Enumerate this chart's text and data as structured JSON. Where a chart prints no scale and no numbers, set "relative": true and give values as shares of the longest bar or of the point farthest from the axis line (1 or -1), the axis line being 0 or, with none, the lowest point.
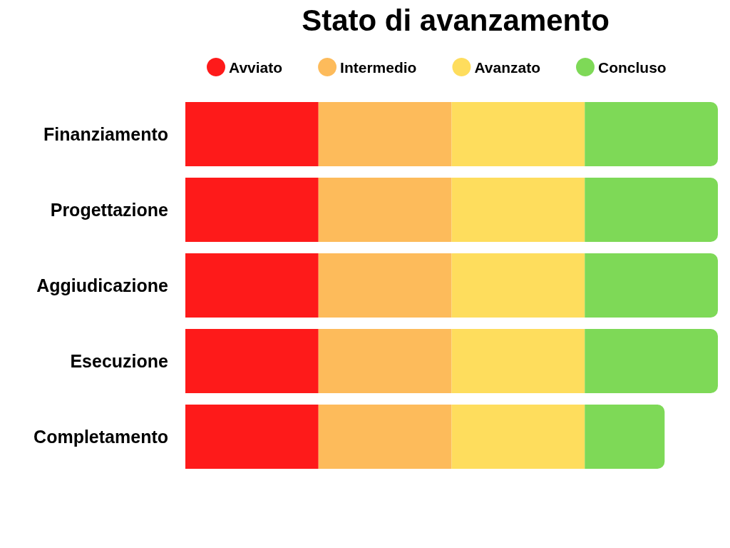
{
  "chart_data": {
    "type": "bar",
    "title": "Stato di avanzamento",
    "orientation": "horizontal",
    "stacked": true,
    "relative": true,
    "legend": "top",
    "marker": "circle",
    "categories": [
      "Finanziamento",
      "Progettazione",
      "Aggiudicazione",
      "Esecuzione",
      "Completamento"
    ],
    "series": [
      {
        "name": "Avviato",
        "color": "#fe1a1a",
        "values": [
          0.25,
          0.25,
          0.25,
          0.25,
          0.25
        ]
      },
      {
        "name": "Intermedio",
        "color": "#fdbb5b",
        "values": [
          0.25,
          0.25,
          0.25,
          0.25,
          0.25
        ]
      },
      {
        "name": "Avanzato",
        "color": "#fedd5d",
        "values": [
          0.25,
          0.25,
          0.25,
          0.25,
          0.25
        ]
      },
      {
        "name": "Concluso",
        "color": "#7ed957",
        "values": [
          0.25,
          0.25,
          0.25,
          0.25,
          0.15
        ]
      }
    ]
  }
}
